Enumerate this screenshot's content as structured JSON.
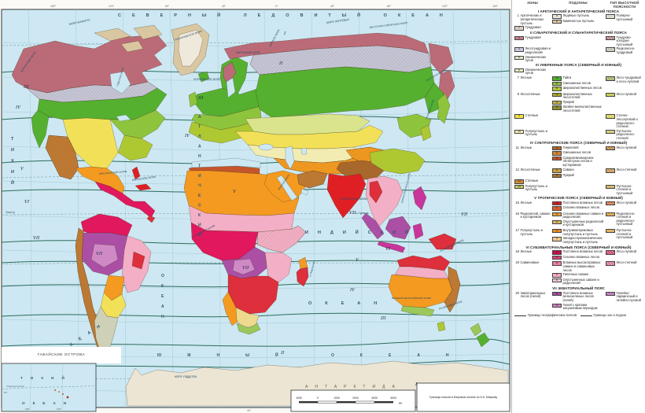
{
  "map": {
    "colors": {
      "ocean": "#cde8f2",
      "graticule": "#a4c9d8",
      "beltline": "#2d6b5e",
      "dash": "#7fa3b0",
      "frame": "#333333",
      "paper": "#fbfaf6",
      "arctic": "#d9c7a2",
      "ice": "#efe9dc",
      "tundra": "#bb6b77",
      "subarctic": "#c6c6d8",
      "taiga": "#55b02f",
      "mixed": "#8ec43c",
      "broadleaf": "#aec832",
      "fsteppe": "#d9e48c",
      "steppe": "#f2e158",
      "semidesert": "#f2ecb2",
      "desert": "#f49a20",
      "brown": "#c17a33",
      "tibet": "#a8682c",
      "medit": "#c4552a",
      "tropred": "#e01f24",
      "pink": "#f3afc6",
      "crimson": "#e1185e",
      "purple": "#ab4fa5",
      "lpurple": "#cf8ac6",
      "subeqred": "#dd2f3c",
      "magenta": "#c8359b",
      "olive": "#9ac85a",
      "pale": "#cfd0b8",
      "kalahari": "#eeda8e",
      "antarct": "#ece5d4",
      "white": "#ffffff"
    },
    "oceans": {
      "arctic": "СЕВЕРНЫЙ ЛЕДОВИТЫЙ ОКЕАН",
      "pacific": "ТИХИЙ",
      "pacific2": "ОКЕАН",
      "atlantic": "АТЛАНТИЧЕСКИЙ",
      "atlantic2": "ОКЕАН",
      "indian": "ИНДИЙСКИЙ",
      "indian2": "ОКЕАН",
      "southern": "ЮЖНЫЙ ОКЕАН",
      "antarctica": "АНТАРКТИДА"
    },
    "seas": [
      "МОРЕ БОФОРТА",
      "БЕРИНГОВО МОРЕ",
      "ГРЕНЛАНДСКОЕ МОРЕ",
      "НОРВЕЖСКОЕ МОРЕ",
      "БАРЕНЦЕВО МОРЕ",
      "КАРСКОЕ МОРЕ",
      "МОРЕ ЛАПТЕВЫХ",
      "ВОСТОЧНО-СИБИРСКОЕ МОРЕ",
      "ОХОТСКОЕ МОРЕ",
      "ЯПОНСКОЕ МОРЕ",
      "КАРИБСКОЕ МОРЕ",
      "МЕКСИКАНСКИЙ ЗАЛИВ",
      "КРАСНОЕ МОРЕ",
      "БЕНГАЛЬСКИЙ ЗАЛИВ",
      "ЮЖНО-КИТАЙСКОЕ МОРЕ",
      "КОРАЛЛОВОЕ МОРЕ",
      "ТАСМАНОВО МОРЕ",
      "БОЛЬШОЙ АВСТРАЛИЙСКИЙ ЗАЛИВ",
      "МОРЕ УЭДДЕЛЛА",
      "ГВИНЕЙСКИЙ ЗАЛИВ",
      "ГУДЗОНОВ ЗАЛИВ"
    ],
    "islands": [
      "о. Мадагаскар",
      "о. Суматра"
    ],
    "latitude_lines": {
      "equator": "Экватор",
      "s_polar": "Южный полярный круг"
    },
    "belt_numerals": [
      "I",
      "II",
      "III",
      "IV",
      "V",
      "VI",
      "VII"
    ],
    "inset": {
      "title": "ГАВАЙСКИЕ ОСТРОВА",
      "line1": "ТИХИЙ",
      "line2": "ОКЕАН",
      "tropic": "Северный тропик",
      "ticks": [
        "180°",
        "160°",
        "20°"
      ]
    },
    "scalebar": {
      "labels": [
        "1000",
        "0",
        "1000",
        "2000",
        "3000",
        "4000"
      ],
      "unit": "км"
    },
    "note": "Границы поясов в Мировом океане по К.К. Маркову",
    "top_ticks": [
      "160°",
      "120°",
      "80°",
      "40°",
      "0°",
      "40°",
      "80°",
      "120°",
      "160°"
    ],
    "bottom_ticks": [
      "40°",
      "80°",
      "160°"
    ]
  },
  "legend": {
    "headers": [
      "ЗОНЫ",
      "ПОДЗОНЫ",
      "ТИП ВЫСОТНОЙ ПОЯСНОСТИ"
    ],
    "belts": [
      {
        "title": "I АРКТИЧЕСКИЙ И АНТАРКТИЧЕСКИЙ ПОЯСА",
        "zones": [
          {
            "num": "1",
            "label": "Арктических и антарктических пустынь",
            "subzones": [
              {
                "code": "а",
                "color": "#ece9db",
                "label": "Ледяных пустынь"
              },
              {
                "code": "б",
                "color": "#d9c79f",
                "label": "Каменистых пустынь"
              }
            ],
            "type": {
              "color": "#d6d6c6",
              "label": "Полярно-пустынный"
            }
          },
          {
            "num": "2",
            "swatch": "#e0d0c8",
            "label": "Тундровая"
          }
        ]
      },
      {
        "title": "II СУБАРКТИЧЕСКИЙ И СУБАНТАРКТИЧЕСКИЙ ПОЯСА",
        "zones": [
          {
            "num": "3",
            "swatch": "#c8808e",
            "label": "Тундровая",
            "type": {
              "color": "#b97f86",
              "label": "Тундрово-холодно-пустынный"
            }
          },
          {
            "num": "4",
            "swatch": "#c9c9dc",
            "label": "Лесотундровая и редколесий",
            "type": {
              "color": "#b9c4a8",
              "label": "Редколесно-тундровый"
            }
          },
          {
            "num": "5",
            "swatch": "#dde6c3",
            "label": "Океанических лугов"
          }
        ]
      },
      {
        "title": "III УМЕРЕННЫЕ ПОЯСА (СЕВЕРНЫЙ И ЮЖНЫЙ)",
        "zones": [
          {
            "num": "6",
            "swatch": "#e7eec4",
            "label": "Океанических лугов"
          },
          {
            "num": "7",
            "label": "Лесные",
            "subzones": [
              {
                "code": "а",
                "color": "#4fae2e",
                "label": "Тайги"
              },
              {
                "code": "б",
                "color": "#8ec43c",
                "label": "Смешанных лесов"
              },
              {
                "code": "в",
                "color": "#aec832",
                "label": "Широколиственных лесов"
              }
            ],
            "type": {
              "color": "#9fae5a",
              "label": "Лесо-тундровый и лесо-луговой"
            }
          },
          {
            "num": "8",
            "label": "Лесостепные",
            "subzones": [
              {
                "code": "а",
                "color": "#a9a928",
                "label": "Широколиственных лесостепей"
              },
              {
                "code": "б",
                "color": "#c2b24a",
                "label": "Прерий"
              },
              {
                "code": "в",
                "color": "#8f8f2a",
                "label": "Хвойно-мелколиственных лесостепей"
              }
            ],
            "type": {
              "color": "#b9c437",
              "label": "Лесо-луговой"
            }
          },
          {
            "num": "9",
            "swatch": "#f2e340",
            "label": "Степные",
            "type": {
              "color": "#d8cc50",
              "label": "Степно-лесолуговой и редколесно-степной"
            }
          },
          {
            "num": "10",
            "swatch": "#f5eeb4",
            "label": "Полупустынь и пустынь",
            "type": {
              "color": "#cfc468",
              "label": "Пустынно-редколесно-степной"
            }
          }
        ]
      },
      {
        "title": "IV СУБТРОПИЧЕСКИЕ ПОЯСА (СЕВЕРНЫЙ И ЮЖНЫЙ)",
        "zones": [
          {
            "num": "11",
            "label": "Лесные",
            "subzones": [
              {
                "code": "а",
                "color": "#b66a28",
                "label": "Гемигилей"
              },
              {
                "code": "б",
                "color": "#cd8530",
                "label": "Смешанных лесов"
              },
              {
                "code": "в",
                "color": "#c4552a",
                "label": "Средиземноморских летнесухих лесов и кустарников"
              }
            ],
            "type": {
              "color": "#c08038",
              "label": "Лесо-луговой"
            }
          },
          {
            "num": "12",
            "label": "Лесостепные",
            "subzones": [
              {
                "code": "а",
                "color": "#cfa03c",
                "label": "Саванн"
              },
              {
                "code": "б",
                "color": "#a87830",
                "label": "Прерий"
              }
            ],
            "type": {
              "color": "#c49042",
              "label": "Лесо-степной"
            }
          },
          {
            "num": "13",
            "swatch": "#cf8a33",
            "label": "Степные"
          },
          {
            "num": "14",
            "swatch": "#c6c95e",
            "label": "Полупустынь и пустынь",
            "type": {
              "color": "#c9a84a",
              "label": "Пустынно-степной и пустынный"
            }
          }
        ]
      },
      {
        "title": "V ТРОПИЧЕСКИЕ ПОЯСА (СЕВЕРНЫЙ И ЮЖНЫЙ)",
        "zones": [
          {
            "num": "15",
            "label": "Лесные",
            "subzones": [
              {
                "code": "а",
                "color": "#da1f24",
                "label": "Постоянно влажных лесов"
              },
              {
                "code": "б",
                "color": "#e25c2d",
                "label": "Сезонно влажных лесов"
              }
            ],
            "type": {
              "color": "#da6a3a",
              "label": "Лесо-луговой"
            }
          },
          {
            "num": "16",
            "label": "Редколесий, саванн и кустарников",
            "subzones": [
              {
                "code": "а",
                "color": "#e8a431",
                "label": "Сезонно влажных саванн и редколесий"
              },
              {
                "code": "б",
                "color": "#d9b369",
                "label": "Опустыненных редколесий и кустарников"
              }
            ],
            "type": {
              "color": "#d9972f",
              "label": "Редколесно-степной и редколесно-пустынный"
            }
          },
          {
            "num": "17",
            "label": "Полупустынь и пустынь",
            "subzones": [
              {
                "code": "а",
                "color": "#ea8f1f",
                "label": "Внутриматериковых полупустынь и пустынь"
              },
              {
                "code": "б",
                "color": "#f3c98e",
                "label": "Западно-приокеанических полупустынь и пустынь"
              }
            ],
            "type": {
              "color": "#daa23c",
              "label": "Пустынно-степной и пустынный"
            }
          }
        ]
      },
      {
        "title": "VI СУБЭКВАТОРИАЛЬНЫЕ ПОЯСА (СЕВЕРНЫЙ И ЮЖНЫЙ)",
        "zones": [
          {
            "num": "18",
            "label": "Лесные",
            "subzones": [
              {
                "code": "а",
                "color": "#c50f4b",
                "label": "Постоянно влажных лесов"
              },
              {
                "code": "б",
                "color": "#e1447c",
                "label": "Сезонно влажных лесов"
              }
            ],
            "type": {
              "color": "#cc3f66",
              "label": "Лесо-луговой"
            }
          },
          {
            "num": "19",
            "label": "Саванновые",
            "subzones": [
              {
                "code": "а",
                "color": "#ec7fa0",
                "label": "Влажных высокотравных саванн и саванновых лесов"
              },
              {
                "code": "б",
                "color": "#f3abbe",
                "label": "Типичных саванн"
              },
              {
                "code": "в",
                "color": "#f9cdd7",
                "label": "Опустыненных саванн и редколесий"
              }
            ],
            "type": {
              "color": "#d9728e",
              "label": "Лесо-степной"
            }
          }
        ]
      },
      {
        "title": "VII ЭКВАТОРИАЛЬНЫЙ ПОЯС",
        "zones": [
          {
            "num": "20",
            "label": "Экваториальных лесов (гилей)",
            "subzones": [
              {
                "code": "а",
                "color": "#a94b9e",
                "label": "Постоянно влажных вечнозеленых лесов (гилей)"
              },
              {
                "code": "б",
                "color": "#c981bd",
                "label": "Гилей с кратким засушливым периодом"
              }
            ],
            "type": {
              "color": "#b75fae",
              "label": "Гилейно-парамосный и гилейно-луговой"
            }
          }
        ]
      }
    ],
    "boundaries": [
      {
        "label": "Границы географических поясов",
        "style": "thick"
      },
      {
        "label": "Границы зон и подзон",
        "style": "thin"
      }
    ]
  }
}
